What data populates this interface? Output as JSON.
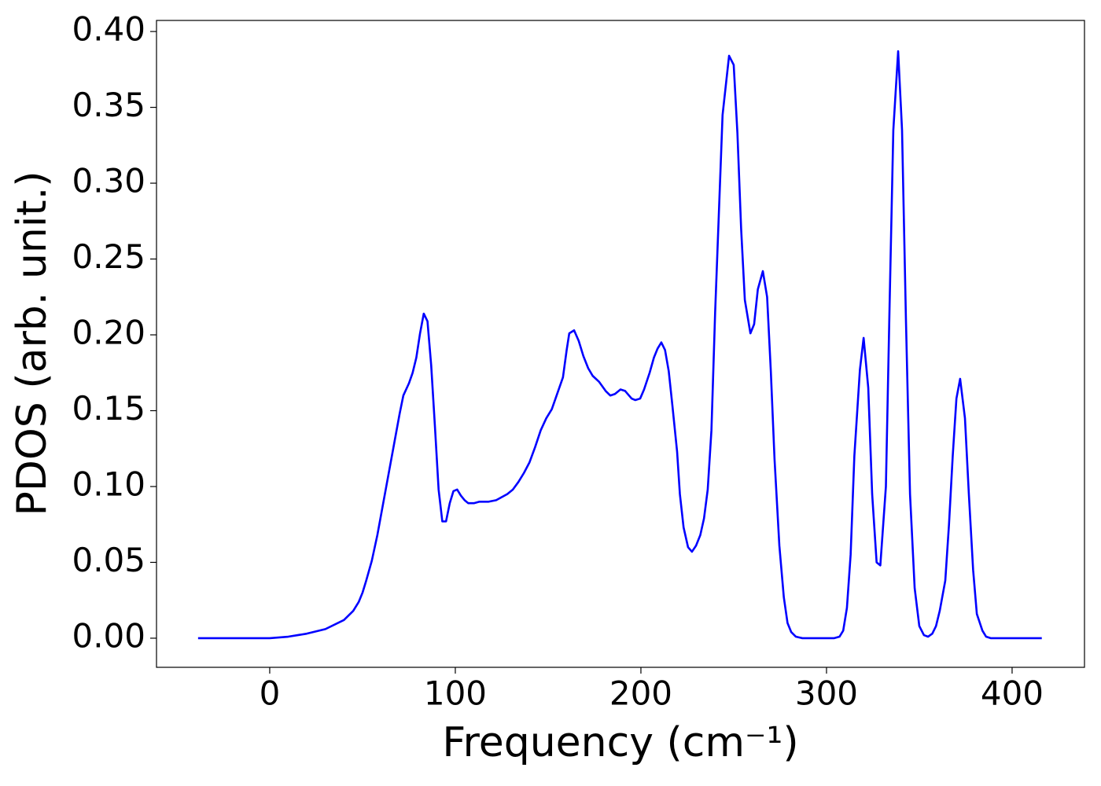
{
  "chart_data": {
    "type": "line",
    "xlabel": "Frequency (cm⁻¹)",
    "ylabel": "PDOS (arb. unit.)",
    "xlim": [
      -61,
      439
    ],
    "ylim": [
      -0.0192,
      0.4073
    ],
    "xticks": [
      0,
      100,
      200,
      300,
      400
    ],
    "yticks": [
      {
        "value": 0,
        "label": "0.00"
      },
      {
        "value": 0.05,
        "label": "0.05"
      },
      {
        "value": 0.1,
        "label": "0.10"
      },
      {
        "value": 0.15,
        "label": "0.15"
      },
      {
        "value": 0.2,
        "label": "0.20"
      },
      {
        "value": 0.25,
        "label": "0.25"
      },
      {
        "value": 0.3,
        "label": "0.30"
      },
      {
        "value": 0.35,
        "label": "0.35"
      },
      {
        "value": 0.4,
        "label": "0.40"
      }
    ],
    "grid": false,
    "series": [
      {
        "color": "#0000ff",
        "x": [
          -38.6,
          0,
          10,
          20,
          30,
          40,
          45,
          48,
          50,
          52,
          55,
          58,
          61,
          64,
          67,
          70,
          72,
          75,
          77,
          79,
          81,
          83,
          85,
          87,
          89,
          91,
          93,
          95,
          97,
          99,
          101,
          103,
          105,
          107,
          110,
          113,
          118,
          122,
          125,
          128,
          131,
          134,
          137,
          140,
          143,
          146,
          149,
          152,
          154,
          158,
          160,
          161.4,
          164,
          166.5,
          169,
          171.6,
          174,
          177.5,
          181,
          183.5,
          186,
          189,
          191.5,
          195,
          197,
          199.6,
          201.7,
          204.7,
          207,
          209,
          211,
          213,
          215,
          217,
          219.5,
          221,
          223,
          225.4,
          227.5,
          229.7,
          232,
          234,
          236,
          238,
          240,
          242,
          244,
          247.5,
          250,
          252,
          254,
          256,
          259,
          261,
          263,
          265.7,
          268,
          270,
          272,
          274.6,
          277,
          279,
          281,
          283.5,
          287,
          304,
          307,
          309,
          311,
          313,
          315,
          318,
          320,
          322.5,
          324.6,
          327,
          329,
          332,
          334,
          336,
          338.6,
          340.7,
          342.8,
          345,
          347.5,
          350,
          352.5,
          354.7,
          357,
          359,
          361,
          364,
          366,
          368,
          370,
          372,
          374.6,
          376.7,
          379,
          381,
          384,
          386,
          388.6,
          416
        ],
        "values": [
          0,
          0,
          0.001,
          0.003,
          0.006,
          0.012,
          0.018,
          0.024,
          0.03,
          0.038,
          0.051,
          0.068,
          0.088,
          0.108,
          0.128,
          0.148,
          0.16,
          0.168,
          0.175,
          0.185,
          0.201,
          0.214,
          0.209,
          0.18,
          0.14,
          0.098,
          0.077,
          0.077,
          0.089,
          0.097,
          0.098,
          0.094,
          0.091,
          0.089,
          0.089,
          0.09,
          0.09,
          0.091,
          0.093,
          0.095,
          0.098,
          0.103,
          0.109,
          0.116,
          0.126,
          0.137,
          0.145,
          0.151,
          0.158,
          0.172,
          0.19,
          0.201,
          0.203,
          0.196,
          0.186,
          0.178,
          0.173,
          0.169,
          0.163,
          0.16,
          0.161,
          0.164,
          0.163,
          0.158,
          0.157,
          0.158,
          0.164,
          0.175,
          0.185,
          0.191,
          0.195,
          0.19,
          0.176,
          0.153,
          0.123,
          0.095,
          0.073,
          0.06,
          0.057,
          0.061,
          0.068,
          0.079,
          0.098,
          0.137,
          0.215,
          0.28,
          0.345,
          0.384,
          0.378,
          0.333,
          0.27,
          0.223,
          0.201,
          0.207,
          0.23,
          0.242,
          0.225,
          0.176,
          0.118,
          0.061,
          0.027,
          0.01,
          0.004,
          0.001,
          0,
          0,
          0.001,
          0.005,
          0.02,
          0.055,
          0.12,
          0.177,
          0.198,
          0.165,
          0.095,
          0.05,
          0.048,
          0.1,
          0.22,
          0.335,
          0.387,
          0.335,
          0.21,
          0.095,
          0.033,
          0.008,
          0.002,
          0.001,
          0.003,
          0.008,
          0.018,
          0.038,
          0.075,
          0.12,
          0.158,
          0.171,
          0.145,
          0.095,
          0.045,
          0.016,
          0.005,
          0.001,
          0,
          0
        ]
      }
    ]
  }
}
